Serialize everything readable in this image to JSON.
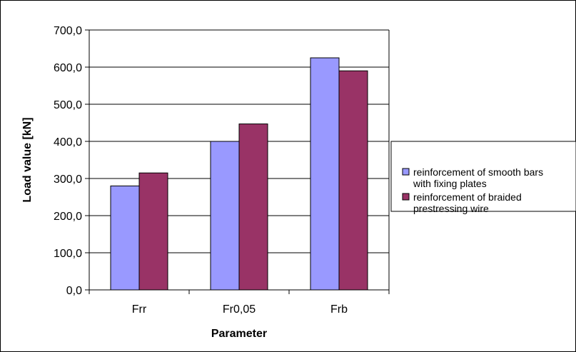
{
  "chart_data": {
    "type": "bar",
    "xlabel": "Parameter",
    "ylabel": "Load value [kN]",
    "categories": [
      "Frr",
      "Fr0,05",
      "Frb"
    ],
    "ylim": [
      0,
      700
    ],
    "y_ticks": [
      "0,0",
      "100,0",
      "200,0",
      "300,0",
      "400,0",
      "500,0",
      "600,0",
      "700,0"
    ],
    "grid": true,
    "legend_position": "right",
    "series": [
      {
        "name_lines": [
          "reinforcement of smooth bars",
          "with fixing plates"
        ],
        "color": "#9999ff",
        "values": [
          280,
          400,
          625
        ]
      },
      {
        "name_lines": [
          "reinforcement of braided",
          "prestressing wire"
        ],
        "color": "#993366",
        "values": [
          315,
          447,
          590
        ]
      }
    ]
  }
}
